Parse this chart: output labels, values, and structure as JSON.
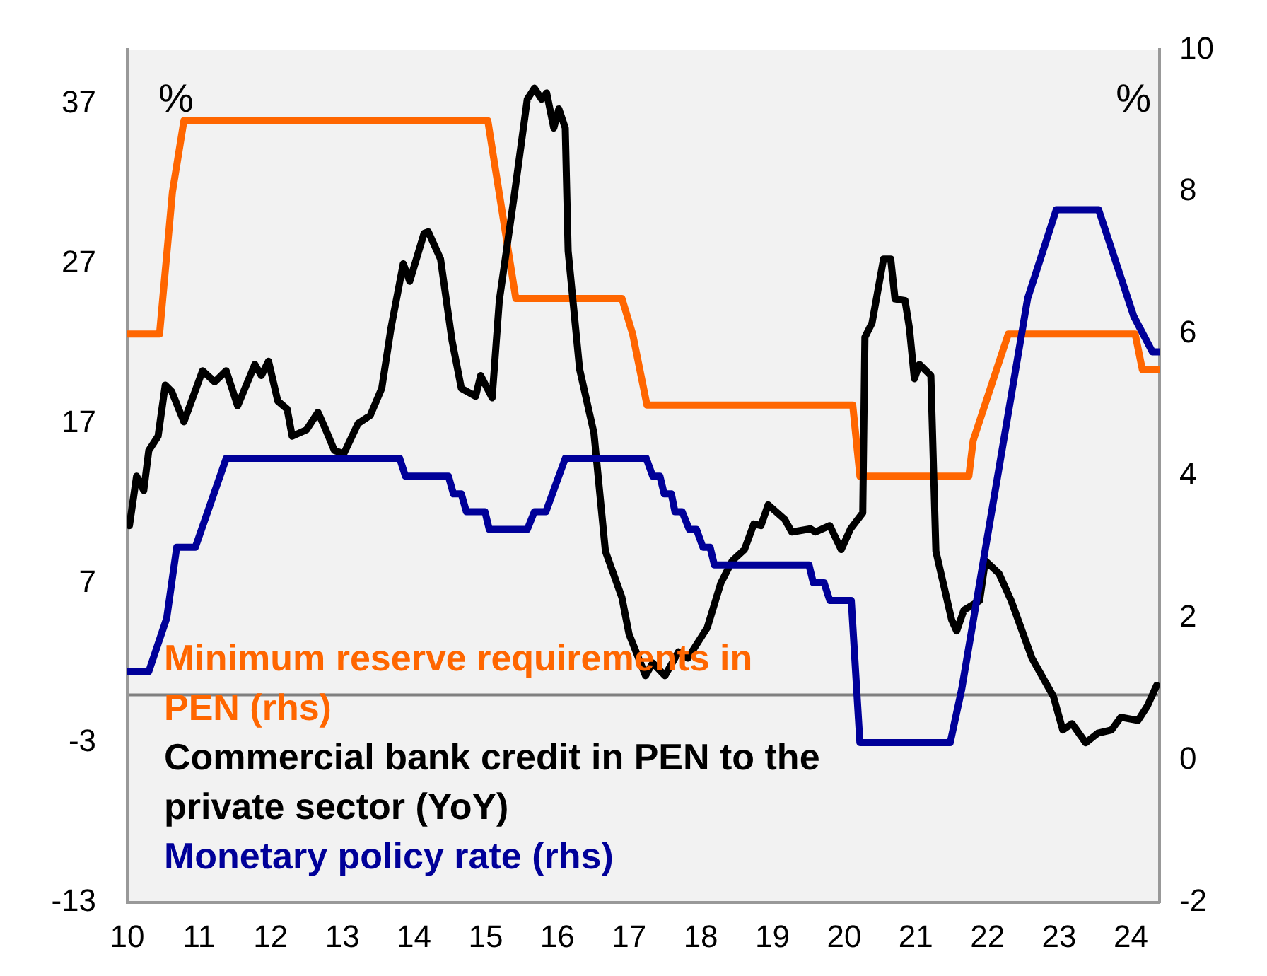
{
  "chart_data": {
    "type": "line",
    "xlim": [
      2010,
      2024.4
    ],
    "xticks": [
      {
        "value": 2010,
        "label": "10"
      },
      {
        "value": 2011,
        "label": "11"
      },
      {
        "value": 2012,
        "label": "12"
      },
      {
        "value": 2013,
        "label": "13"
      },
      {
        "value": 2014,
        "label": "14"
      },
      {
        "value": 2015,
        "label": "15"
      },
      {
        "value": 2016,
        "label": "16"
      },
      {
        "value": 2017,
        "label": "17"
      },
      {
        "value": 2018,
        "label": "18"
      },
      {
        "value": 2019,
        "label": "19"
      },
      {
        "value": 2020,
        "label": "20"
      },
      {
        "value": 2021,
        "label": "21"
      },
      {
        "value": 2022,
        "label": "22"
      },
      {
        "value": 2023,
        "label": "23"
      },
      {
        "value": 2024,
        "label": "24"
      }
    ],
    "ylim": [
      -13,
      40.4
    ],
    "yticks": [
      -13,
      -3,
      7,
      17,
      27,
      37
    ],
    "y2lim": [
      -2,
      10
    ],
    "y2ticks": [
      -2,
      0,
      2,
      4,
      6,
      8,
      10
    ],
    "grid": false,
    "legend": "bottom left",
    "marker": "none",
    "line_style": "solid",
    "annotations": [
      "%",
      "%"
    ],
    "ref_lines": [
      {
        "axis": "y",
        "value": 0,
        "color": "#808080"
      }
    ],
    "series": [
      {
        "name": "Minimum reserve requirements in PEN (rhs)",
        "color": "#ff6600",
        "axis": "y2",
        "x": [
          2010,
          2010.45,
          2010.63,
          2010.79,
          2015.03,
          2015.42,
          2016.9,
          2017.05,
          2017.25,
          2020.12,
          2020.22,
          2021.74,
          2021.8,
          2022.29,
          2024.06,
          2024.16,
          2024.4
        ],
        "values": [
          6,
          6,
          8,
          9,
          9,
          6.5,
          6.5,
          6,
          5,
          5,
          4,
          4,
          4.5,
          6,
          6,
          5.5,
          5.5
        ]
      },
      {
        "name": "Commercial bank credit in PEN to the private sector (YoY)",
        "color": "#000000",
        "x": [
          2010.03,
          2010.13,
          2010.23,
          2010.3,
          2010.43,
          2010.53,
          2010.62,
          2010.79,
          2011.05,
          2011.22,
          2011.38,
          2011.54,
          2011.78,
          2011.87,
          2011.97,
          2012.1,
          2012.23,
          2012.3,
          2012.5,
          2012.66,
          2012.76,
          2012.89,
          2013.02,
          2013.22,
          2013.39,
          2013.55,
          2013.68,
          2013.85,
          2013.94,
          2014.14,
          2014.2,
          2014.37,
          2014.53,
          2014.66,
          2014.86,
          2014.93,
          2015.09,
          2015.19,
          2015.39,
          2015.58,
          2015.68,
          2015.78,
          2015.85,
          2015.95,
          2016.02,
          2016.11,
          2016.15,
          2016.31,
          2016.51,
          2016.67,
          2016.9,
          2017,
          2017.23,
          2017.33,
          2017.5,
          2017.69,
          2017.82,
          2018.09,
          2018.28,
          2018.44,
          2018.61,
          2018.74,
          2018.84,
          2018.94,
          2019.17,
          2019.27,
          2019.53,
          2019.6,
          2019.8,
          2019.96,
          2020.09,
          2020.26,
          2020.29,
          2020.39,
          2020.55,
          2020.65,
          2020.71,
          2020.85,
          2020.91,
          2020.98,
          2021.05,
          2021.21,
          2021.28,
          2021.5,
          2021.57,
          2021.67,
          2021.89,
          2021.97,
          2022.16,
          2022.33,
          2022.62,
          2022.92,
          2023.05,
          2023.18,
          2023.37,
          2023.54,
          2023.73,
          2023.86,
          2024.1,
          2024.23,
          2024.36
        ],
        "values": [
          10.6,
          13.7,
          12.8,
          15.3,
          16.2,
          19.4,
          19,
          17.1,
          20.3,
          19.6,
          20.3,
          18.1,
          20.7,
          20,
          20.9,
          18.4,
          17.9,
          16.2,
          16.6,
          17.7,
          16.7,
          15.3,
          15.1,
          17,
          17.5,
          19.2,
          23,
          27,
          25.9,
          28.9,
          29,
          27.3,
          22.2,
          19.2,
          18.7,
          20,
          18.6,
          24.7,
          31,
          37.3,
          38,
          37.3,
          37.7,
          35.5,
          36.7,
          35.5,
          27.8,
          20.4,
          16.4,
          9,
          6.1,
          3.8,
          1.2,
          2,
          1.2,
          2.7,
          2.3,
          4.2,
          7,
          8.4,
          9.1,
          10.7,
          10.6,
          11.9,
          11,
          10.2,
          10.4,
          10.2,
          10.6,
          9.1,
          10.4,
          11.4,
          22.4,
          23.3,
          27.3,
          27.3,
          24.8,
          24.7,
          23,
          19.8,
          20.7,
          20,
          9,
          4.7,
          4,
          5.3,
          5.9,
          8.4,
          7.6,
          5.9,
          2.3,
          -0.1,
          -2.2,
          -1.8,
          -3,
          -2.4,
          -2.2,
          -1.4,
          -1.6,
          -0.7,
          0.6
        ]
      },
      {
        "name": "Monetary policy rate (rhs)",
        "color": "#000099",
        "axis": "y2",
        "x": [
          2010,
          2010.3,
          2010.55,
          2010.69,
          2010.95,
          2011.38,
          2013.8,
          2013.88,
          2014.48,
          2014.55,
          2014.66,
          2014.73,
          2014.99,
          2015.05,
          2015.58,
          2015.68,
          2015.84,
          2016.11,
          2017.24,
          2017.33,
          2017.43,
          2017.49,
          2017.59,
          2017.64,
          2017.74,
          2017.84,
          2017.94,
          2018.03,
          2018.13,
          2018.19,
          2019.51,
          2019.57,
          2019.72,
          2019.8,
          2020.1,
          2020.22,
          2021.48,
          2021.64,
          2022.56,
          2022.96,
          2023.55,
          2024.04,
          2024.3,
          2024.4
        ],
        "values": [
          1.25,
          1.25,
          2,
          3,
          3,
          4.25,
          4.25,
          4,
          4,
          3.75,
          3.75,
          3.5,
          3.5,
          3.25,
          3.25,
          3.5,
          3.5,
          4.25,
          4.25,
          4,
          4,
          3.75,
          3.75,
          3.5,
          3.5,
          3.25,
          3.25,
          3,
          3,
          2.75,
          2.75,
          2.5,
          2.5,
          2.25,
          2.25,
          0.25,
          0.25,
          1,
          6.5,
          7.75,
          7.75,
          6.25,
          5.75,
          5.75
        ]
      }
    ]
  }
}
